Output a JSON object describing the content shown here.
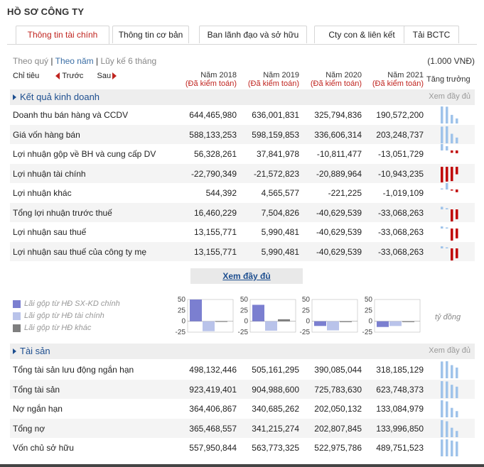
{
  "page_title": "HỒ SƠ CÔNG TY",
  "tabs": [
    {
      "label": "Thông tin tài chính",
      "active": true
    },
    {
      "label": "Thông tin cơ bản"
    },
    {
      "label": "Ban lãnh đạo và sở hữu"
    },
    {
      "label": "Cty con & liên kết"
    },
    {
      "label": "Tải BCTC"
    }
  ],
  "filters": {
    "quarter": "Theo quý",
    "sep1": " | ",
    "year": "Theo năm",
    "sep2": " | ",
    "cumulative": "Lũy kế 6 tháng"
  },
  "unit": "(1.000 VNĐ)",
  "header": {
    "indicator": "Chỉ tiêu",
    "prev": "Trước",
    "next": "Sau",
    "growth": "Tăng trưởng",
    "years": [
      {
        "year": "Năm 2018",
        "audit": "(Đã kiểm toán)"
      },
      {
        "year": "Năm 2019",
        "audit": "(Đã kiểm toán)"
      },
      {
        "year": "Năm 2020",
        "audit": "(Đã kiểm toán)"
      },
      {
        "year": "Năm 2021",
        "audit": "(Đã kiểm toán)"
      }
    ]
  },
  "sections": [
    {
      "title": "Kết quả kinh doanh",
      "more": "Xem đầy đủ",
      "rows": [
        {
          "name": "Doanh thu bán hàng và CCDV",
          "values": [
            "644,465,980",
            "636,001,831",
            "325,794,836",
            "190,572,200"
          ],
          "raw": [
            644465980,
            636001831,
            325794836,
            190572200
          ]
        },
        {
          "name": "Giá vốn hàng bán",
          "values": [
            "588,133,253",
            "598,159,853",
            "336,606,314",
            "203,248,737"
          ],
          "raw": [
            588133253,
            598159853,
            336606314,
            203248737
          ]
        },
        {
          "name": "Lợi nhuận gộp về BH và cung cấp DV",
          "values": [
            "56,328,261",
            "37,841,978",
            "-10,811,477",
            "-13,051,729"
          ],
          "raw": [
            56328261,
            37841978,
            -10811477,
            -13051729
          ]
        },
        {
          "name": "Lợi nhuận tài chính",
          "values": [
            "-22,790,349",
            "-21,572,823",
            "-20,889,964",
            "-10,943,235"
          ],
          "raw": [
            -22790349,
            -21572823,
            -20889964,
            -10943235
          ]
        },
        {
          "name": "Lợi nhuận khác",
          "values": [
            "544,392",
            "4,565,577",
            "-221,225",
            "-1,019,109"
          ],
          "raw": [
            544392,
            4565577,
            -221225,
            -1019109
          ]
        },
        {
          "name": "Tổng lợi nhuận trước thuế",
          "values": [
            "16,460,229",
            "7,504,826",
            "-40,629,539",
            "-33,068,263"
          ],
          "raw": [
            16460229,
            7504826,
            -40629539,
            -33068263
          ]
        },
        {
          "name": "Lợi nhuận sau thuế",
          "values": [
            "13,155,771",
            "5,990,481",
            "-40,629,539",
            "-33,068,263"
          ],
          "raw": [
            13155771,
            5990481,
            -40629539,
            -33068263
          ]
        },
        {
          "name": "Lợi nhuận sau thuế của công ty mẹ",
          "values": [
            "13,155,771",
            "5,990,481",
            "-40,629,539",
            "-33,068,263"
          ],
          "raw": [
            13155771,
            5990481,
            -40629539,
            -33068263
          ]
        }
      ]
    },
    {
      "title": "Tài sản",
      "more": "Xem đầy đủ",
      "rows": [
        {
          "name": "Tổng tài sản lưu động ngắn hạn",
          "values": [
            "498,132,446",
            "505,161,295",
            "390,085,044",
            "318,185,129"
          ],
          "raw": [
            498132446,
            505161295,
            390085044,
            318185129
          ]
        },
        {
          "name": "Tổng tài sản",
          "values": [
            "923,419,401",
            "904,988,600",
            "725,783,630",
            "623,748,373"
          ],
          "raw": [
            923419401,
            904988600,
            725783630,
            623748373
          ]
        },
        {
          "name": "Nợ ngắn hạn",
          "values": [
            "364,406,867",
            "340,685,262",
            "202,050,132",
            "133,084,979"
          ],
          "raw": [
            364406867,
            340685262,
            202050132,
            133084979
          ]
        },
        {
          "name": "Tổng nợ",
          "values": [
            "365,468,557",
            "341,215,274",
            "202,807,845",
            "133,996,850"
          ],
          "raw": [
            365468557,
            341215274,
            202807845,
            133996850
          ]
        },
        {
          "name": "Vốn chủ sở hữu",
          "values": [
            "557,950,844",
            "563,773,325",
            "522,975,786",
            "489,751,523"
          ],
          "raw": [
            557950844,
            563773325,
            522975786,
            489751523
          ]
        }
      ]
    }
  ],
  "view_full_button": "Xem đầy đủ",
  "legend": [
    {
      "label": "Lãi gộp từ HĐ SX-KD chính",
      "color": "#7b7fd0"
    },
    {
      "label": "Lãi gộp từ HĐ tài chính",
      "color": "#b9c3ea"
    },
    {
      "label": "Lãi gộp từ HĐ khác",
      "color": "#7f7f7f"
    }
  ],
  "chart_unit": "tỷ đồng",
  "colors": {
    "positive": "#9fc3ea",
    "negative": "#c00000",
    "accent": "#c0241f",
    "link": "#1d4e8f"
  },
  "chart_data": [
    {
      "type": "bar",
      "categories": [
        "Lãi gộp từ HĐ SX-KD chính",
        "Lãi gộp từ HĐ tài chính",
        "Lãi gộp từ HĐ khác"
      ],
      "values": [
        56.3,
        -22.8,
        0.5
      ],
      "ylim": [
        -25,
        50
      ],
      "yticks": [
        50,
        25,
        0,
        -25
      ]
    },
    {
      "type": "bar",
      "categories": [
        "Lãi gộp từ HĐ SX-KD chính",
        "Lãi gộp từ HĐ tài chính",
        "Lãi gộp từ HĐ khác"
      ],
      "values": [
        37.8,
        -21.6,
        4.6
      ],
      "ylim": [
        -25,
        50
      ],
      "yticks": [
        50,
        25,
        0,
        -25
      ]
    },
    {
      "type": "bar",
      "categories": [
        "Lãi gộp từ HĐ SX-KD chính",
        "Lãi gộp từ HĐ tài chính",
        "Lãi gộp từ HĐ khác"
      ],
      "values": [
        -10.8,
        -20.9,
        -0.2
      ],
      "ylim": [
        -25,
        50
      ],
      "yticks": [
        50,
        25,
        0,
        -25
      ]
    },
    {
      "type": "bar",
      "categories": [
        "Lãi gộp từ HĐ SX-KD chính",
        "Lãi gộp từ HĐ tài chính",
        "Lãi gộp từ HĐ khác"
      ],
      "values": [
        -13.1,
        -10.9,
        -1.0
      ],
      "ylim": [
        -25,
        50
      ],
      "yticks": [
        50,
        25,
        0,
        -25
      ]
    }
  ]
}
